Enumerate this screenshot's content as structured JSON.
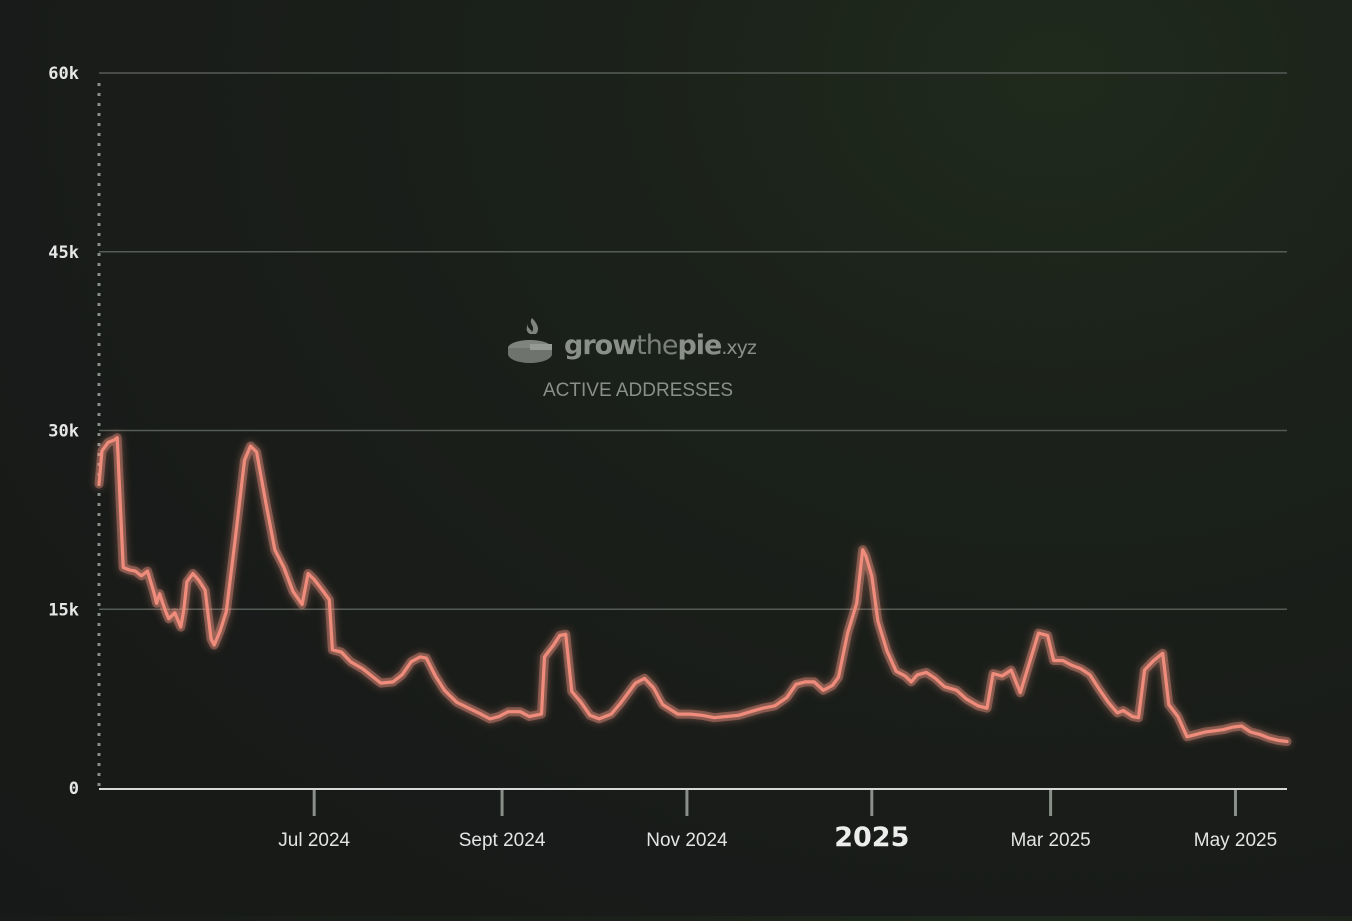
{
  "watermark": {
    "logo": "growthepie.xyz",
    "logo_parts": [
      "grow",
      "the",
      "pie",
      ".xyz"
    ],
    "subtitle": "ACTIVE ADDRESSES"
  },
  "colors": {
    "line": "#f08c7c",
    "glow": "#ff9a88",
    "grid": "#555b55",
    "background": "#1a1d1a"
  },
  "chart_data": {
    "type": "line",
    "title": "",
    "xlabel": "",
    "ylabel": "",
    "ylim": [
      0,
      60000
    ],
    "yticks": [
      {
        "value": 0,
        "label": "0"
      },
      {
        "value": 15000,
        "label": "15k"
      },
      {
        "value": 30000,
        "label": "30k"
      },
      {
        "value": 45000,
        "label": "45k"
      },
      {
        "value": 60000,
        "label": "60k"
      }
    ],
    "xlim": [
      "2024-04-21",
      "2025-05-18"
    ],
    "xticks": [
      {
        "date": "2024-07-01",
        "label": "Jul 2024",
        "major": false
      },
      {
        "date": "2024-09-01",
        "label": "Sept 2024",
        "major": false
      },
      {
        "date": "2024-11-01",
        "label": "Nov 2024",
        "major": false
      },
      {
        "date": "2025-01-01",
        "label": "2025",
        "major": true
      },
      {
        "date": "2025-03-01",
        "label": "Mar 2025",
        "major": false
      },
      {
        "date": "2025-05-01",
        "label": "May 2025",
        "major": false
      }
    ],
    "grid": true,
    "legend": "none",
    "series": [
      {
        "points": [
          [
            "2024-04-21",
            25500
          ],
          [
            "2024-04-22",
            28300
          ],
          [
            "2024-04-24",
            29000
          ],
          [
            "2024-04-26",
            29200
          ],
          [
            "2024-04-27",
            29400
          ],
          [
            "2024-04-29",
            18500
          ],
          [
            "2024-05-01",
            18300
          ],
          [
            "2024-05-03",
            18200
          ],
          [
            "2024-05-05",
            17800
          ],
          [
            "2024-05-07",
            18200
          ],
          [
            "2024-05-09",
            16500
          ],
          [
            "2024-05-10",
            15500
          ],
          [
            "2024-05-11",
            16300
          ],
          [
            "2024-05-13",
            14800
          ],
          [
            "2024-05-14",
            14200
          ],
          [
            "2024-05-16",
            14700
          ],
          [
            "2024-05-18",
            13500
          ],
          [
            "2024-05-19",
            15000
          ],
          [
            "2024-05-20",
            17300
          ],
          [
            "2024-05-22",
            18000
          ],
          [
            "2024-05-24",
            17400
          ],
          [
            "2024-05-26",
            16600
          ],
          [
            "2024-05-28",
            12500
          ],
          [
            "2024-05-29",
            12000
          ],
          [
            "2024-05-31",
            13200
          ],
          [
            "2024-06-02",
            14800
          ],
          [
            "2024-06-05",
            21000
          ],
          [
            "2024-06-08",
            27500
          ],
          [
            "2024-06-10",
            28700
          ],
          [
            "2024-06-12",
            28200
          ],
          [
            "2024-06-15",
            24000
          ],
          [
            "2024-06-18",
            20000
          ],
          [
            "2024-06-21",
            18500
          ],
          [
            "2024-06-24",
            16500
          ],
          [
            "2024-06-27",
            15400
          ],
          [
            "2024-06-29",
            18000
          ],
          [
            "2024-07-01",
            17500
          ],
          [
            "2024-07-04",
            16500
          ],
          [
            "2024-07-06",
            15800
          ],
          [
            "2024-07-07",
            11600
          ],
          [
            "2024-07-10",
            11400
          ],
          [
            "2024-07-13",
            10600
          ],
          [
            "2024-07-17",
            10000
          ],
          [
            "2024-07-21",
            9200
          ],
          [
            "2024-07-23",
            8800
          ],
          [
            "2024-07-27",
            8900
          ],
          [
            "2024-07-30",
            9500
          ],
          [
            "2024-08-02",
            10600
          ],
          [
            "2024-08-05",
            11000
          ],
          [
            "2024-08-07",
            10900
          ],
          [
            "2024-08-10",
            9400
          ],
          [
            "2024-08-13",
            8200
          ],
          [
            "2024-08-17",
            7200
          ],
          [
            "2024-08-21",
            6700
          ],
          [
            "2024-08-25",
            6200
          ],
          [
            "2024-08-28",
            5800
          ],
          [
            "2024-08-31",
            6000
          ],
          [
            "2024-09-03",
            6400
          ],
          [
            "2024-09-07",
            6400
          ],
          [
            "2024-09-10",
            6000
          ],
          [
            "2024-09-14",
            6200
          ],
          [
            "2024-09-15",
            11000
          ],
          [
            "2024-09-18",
            12000
          ],
          [
            "2024-09-20",
            12800
          ],
          [
            "2024-09-22",
            12900
          ],
          [
            "2024-09-24",
            8100
          ],
          [
            "2024-09-27",
            7200
          ],
          [
            "2024-09-30",
            6100
          ],
          [
            "2024-10-03",
            5800
          ],
          [
            "2024-10-07",
            6200
          ],
          [
            "2024-10-10",
            7100
          ],
          [
            "2024-10-15",
            8800
          ],
          [
            "2024-10-18",
            9200
          ],
          [
            "2024-10-21",
            8400
          ],
          [
            "2024-10-24",
            7000
          ],
          [
            "2024-10-29",
            6200
          ],
          [
            "2024-11-02",
            6200
          ],
          [
            "2024-11-06",
            6100
          ],
          [
            "2024-11-10",
            5900
          ],
          [
            "2024-11-14",
            6000
          ],
          [
            "2024-11-18",
            6100
          ],
          [
            "2024-11-22",
            6400
          ],
          [
            "2024-11-26",
            6700
          ],
          [
            "2024-11-30",
            6900
          ],
          [
            "2024-12-04",
            7600
          ],
          [
            "2024-12-07",
            8700
          ],
          [
            "2024-12-10",
            8900
          ],
          [
            "2024-12-13",
            8900
          ],
          [
            "2024-12-16",
            8200
          ],
          [
            "2024-12-19",
            8600
          ],
          [
            "2024-12-21",
            9300
          ],
          [
            "2024-12-24",
            13000
          ],
          [
            "2024-12-27",
            15500
          ],
          [
            "2024-12-29",
            20000
          ],
          [
            "2024-12-30",
            19500
          ],
          [
            "2025-01-01",
            17800
          ],
          [
            "2025-01-03",
            14000
          ],
          [
            "2025-01-06",
            11500
          ],
          [
            "2025-01-09",
            9800
          ],
          [
            "2025-01-12",
            9400
          ],
          [
            "2025-01-14",
            8900
          ],
          [
            "2025-01-16",
            9500
          ],
          [
            "2025-01-19",
            9700
          ],
          [
            "2025-01-22",
            9200
          ],
          [
            "2025-01-25",
            8500
          ],
          [
            "2025-01-29",
            8200
          ],
          [
            "2025-02-01",
            7500
          ],
          [
            "2025-02-05",
            6900
          ],
          [
            "2025-02-08",
            6700
          ],
          [
            "2025-02-10",
            9600
          ],
          [
            "2025-02-13",
            9400
          ],
          [
            "2025-02-16",
            9900
          ],
          [
            "2025-02-19",
            8000
          ],
          [
            "2025-02-22",
            10500
          ],
          [
            "2025-02-25",
            13000
          ],
          [
            "2025-02-28",
            12800
          ],
          [
            "2025-03-02",
            10700
          ],
          [
            "2025-03-05",
            10700
          ],
          [
            "2025-03-08",
            10300
          ],
          [
            "2025-03-11",
            10000
          ],
          [
            "2025-03-14",
            9500
          ],
          [
            "2025-03-17",
            8300
          ],
          [
            "2025-03-20",
            7200
          ],
          [
            "2025-03-23",
            6300
          ],
          [
            "2025-03-25",
            6500
          ],
          [
            "2025-03-28",
            6000
          ],
          [
            "2025-03-30",
            5900
          ],
          [
            "2025-04-01",
            9900
          ],
          [
            "2025-04-04",
            10700
          ],
          [
            "2025-04-07",
            11300
          ],
          [
            "2025-04-09",
            7000
          ],
          [
            "2025-04-12",
            6000
          ],
          [
            "2025-04-15",
            4300
          ],
          [
            "2025-04-18",
            4500
          ],
          [
            "2025-04-21",
            4700
          ],
          [
            "2025-04-24",
            4800
          ],
          [
            "2025-04-27",
            4900
          ],
          [
            "2025-04-30",
            5100
          ],
          [
            "2025-05-03",
            5200
          ],
          [
            "2025-05-06",
            4700
          ],
          [
            "2025-05-09",
            4500
          ],
          [
            "2025-05-12",
            4200
          ],
          [
            "2025-05-15",
            4000
          ],
          [
            "2025-05-18",
            3900
          ]
        ]
      }
    ]
  }
}
